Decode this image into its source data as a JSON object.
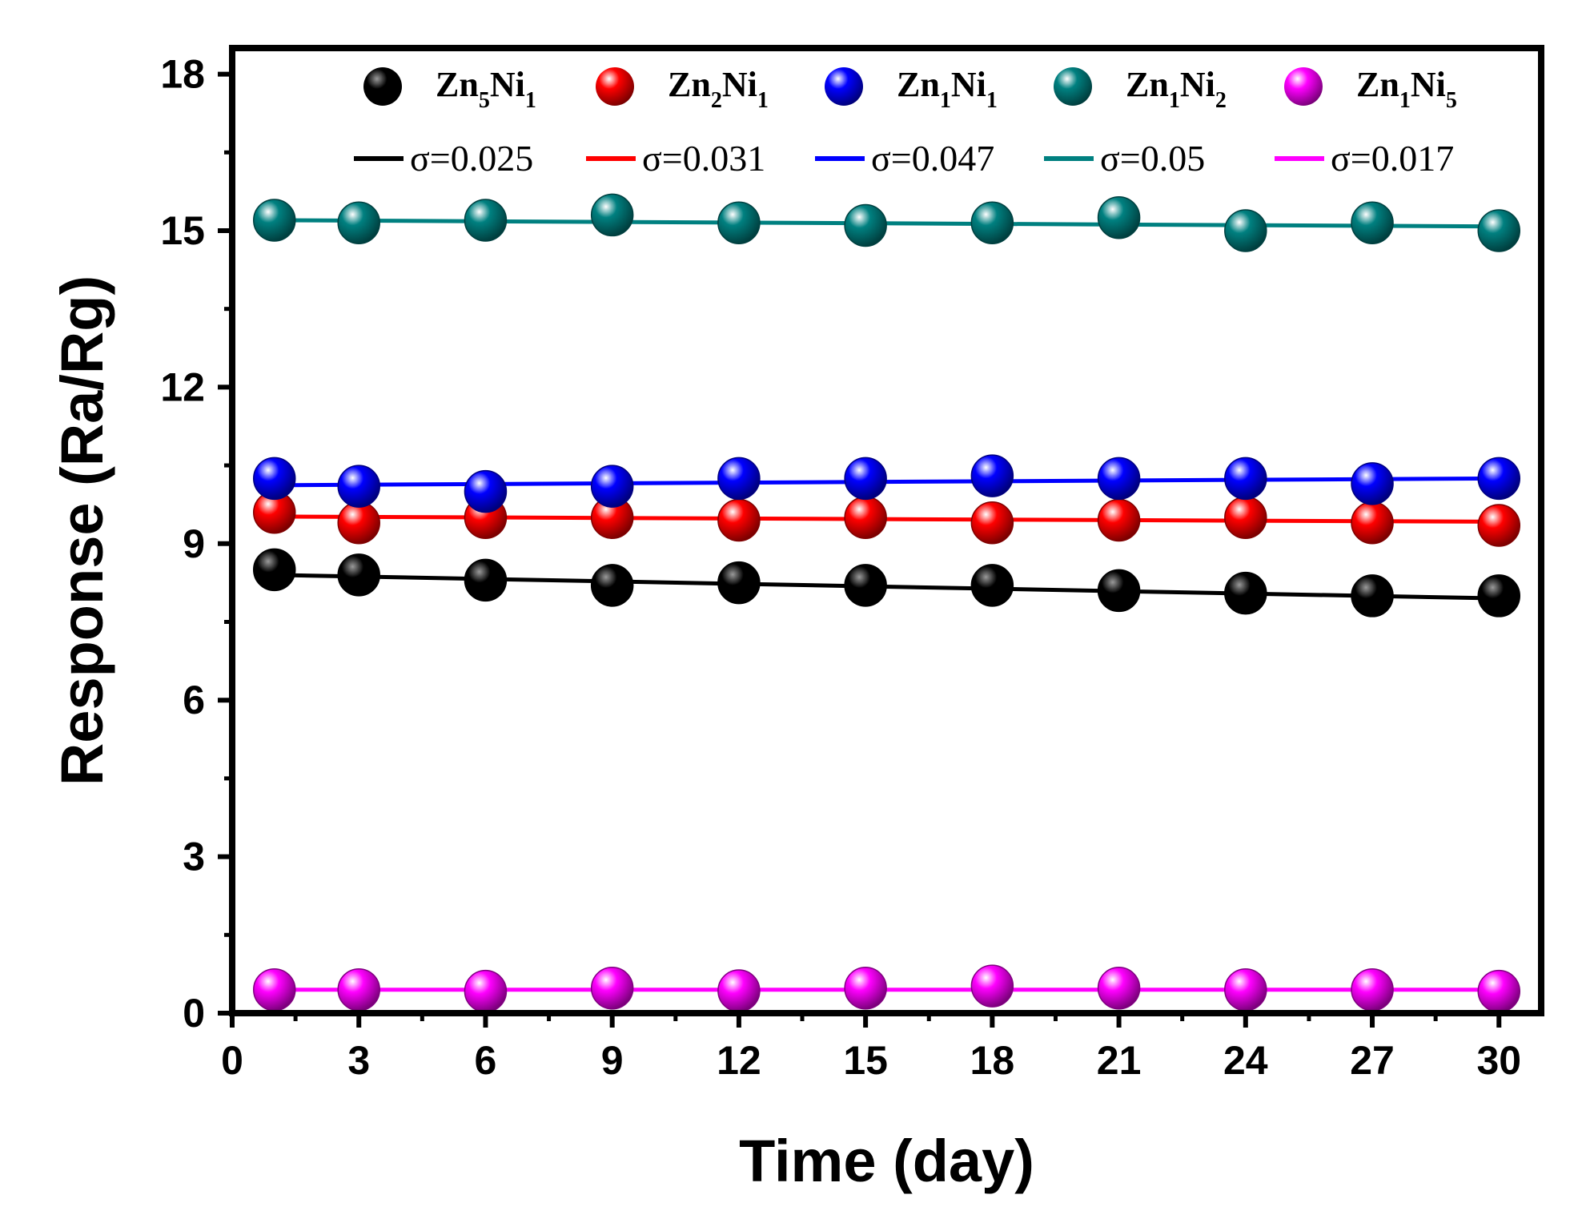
{
  "chart_data": {
    "type": "line",
    "title": "",
    "xlabel": "Time (day)",
    "ylabel": "Response (Ra/Rg)",
    "xlim": [
      0,
      31
    ],
    "ylim": [
      0,
      18.5
    ],
    "xticks": [
      0,
      3,
      6,
      9,
      12,
      15,
      18,
      21,
      24,
      27,
      30
    ],
    "yticks": [
      0,
      3,
      6,
      9,
      12,
      15,
      18
    ],
    "grid": false,
    "legend_position": "top",
    "x": [
      1,
      3,
      6,
      9,
      12,
      15,
      18,
      21,
      24,
      27,
      30
    ],
    "series": [
      {
        "name": "Zn5Ni1",
        "base": "Zn",
        "sub1": "5",
        "mid": "Ni",
        "sub2": "1",
        "color": "#000000",
        "fit_label": "σ=0.025",
        "values": [
          8.5,
          8.4,
          8.3,
          8.2,
          8.25,
          8.2,
          8.2,
          8.1,
          8.05,
          8.0,
          8.0
        ],
        "fit": [
          8.4,
          7.95
        ]
      },
      {
        "name": "Zn2Ni1",
        "base": "Zn",
        "sub1": "2",
        "mid": "Ni",
        "sub2": "1",
        "color": "#ff0000",
        "fit_label": "σ=0.031",
        "values": [
          9.6,
          9.4,
          9.5,
          9.5,
          9.45,
          9.5,
          9.4,
          9.45,
          9.5,
          9.4,
          9.35
        ],
        "fit": [
          9.52,
          9.42
        ]
      },
      {
        "name": "Zn1Ni1",
        "base": "Zn",
        "sub1": "1",
        "mid": "Ni",
        "sub2": "1",
        "color": "#0000ff",
        "fit_label": "σ=0.047",
        "values": [
          10.25,
          10.1,
          10.0,
          10.1,
          10.25,
          10.25,
          10.3,
          10.25,
          10.25,
          10.15,
          10.25
        ],
        "fit": [
          10.12,
          10.25
        ]
      },
      {
        "name": "Zn1Ni2",
        "base": "Zn",
        "sub1": "1",
        "mid": "Ni",
        "sub2": "2",
        "color": "#008080",
        "fit_label": "σ=0.05",
        "values": [
          15.2,
          15.15,
          15.2,
          15.3,
          15.15,
          15.1,
          15.15,
          15.25,
          15.0,
          15.15,
          15.0
        ],
        "fit": [
          15.2,
          15.08
        ]
      },
      {
        "name": "Zn1Ni5",
        "base": "Zn",
        "sub1": "1",
        "mid": "Ni",
        "sub2": "5",
        "color": "#ff00ff",
        "fit_label": "σ=0.017",
        "values": [
          0.45,
          0.45,
          0.42,
          0.48,
          0.43,
          0.48,
          0.52,
          0.48,
          0.45,
          0.45,
          0.42
        ],
        "fit": [
          0.45,
          0.45
        ]
      }
    ]
  }
}
